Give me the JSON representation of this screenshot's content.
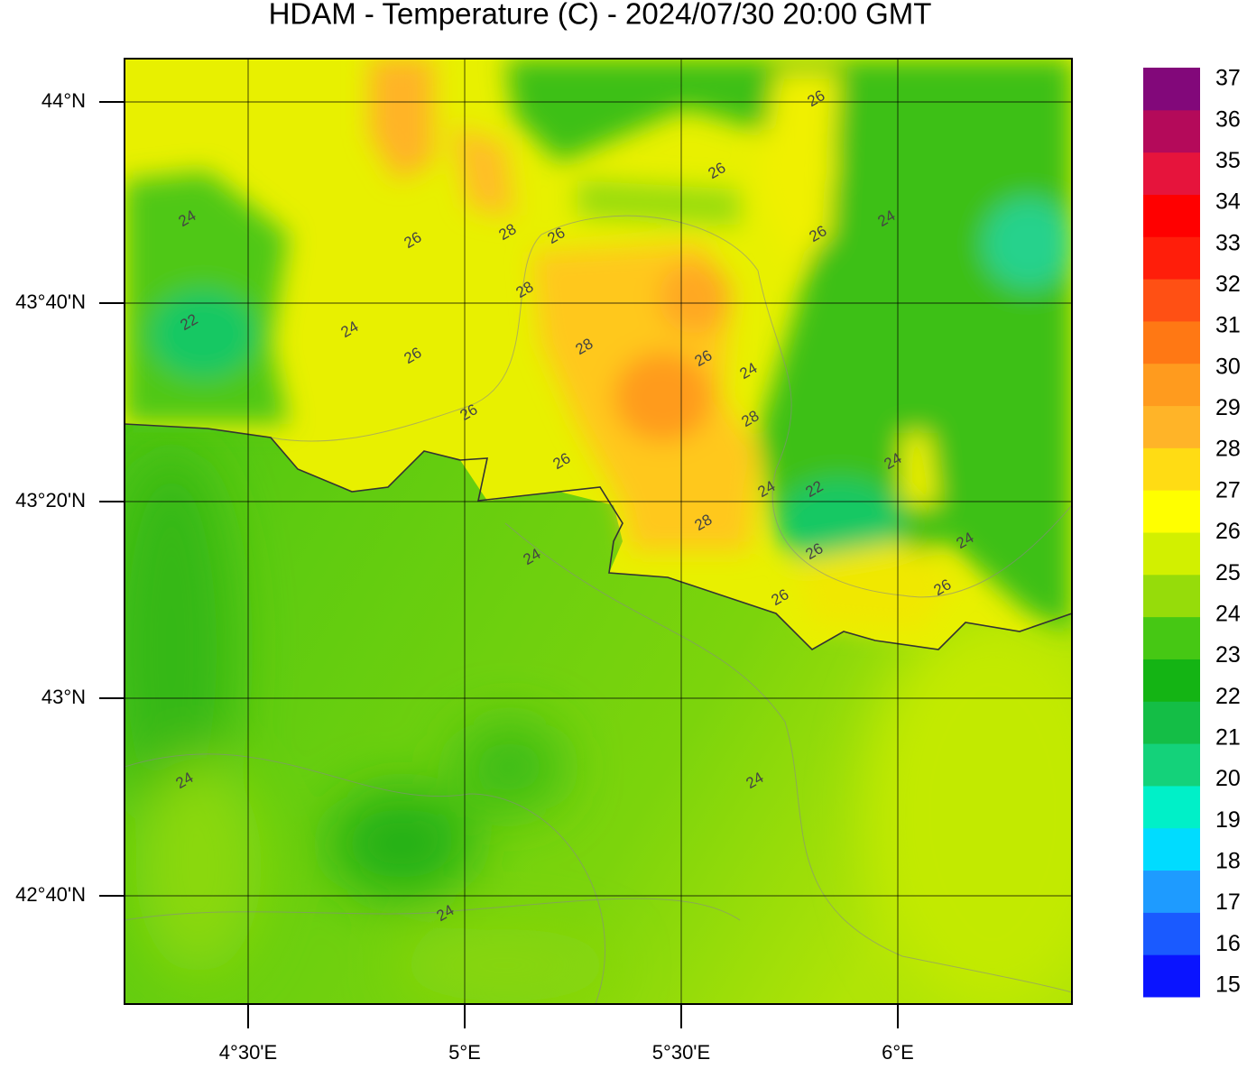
{
  "title": "HDAM - Temperature (C)  -  2024/07/30  20:00 GMT",
  "lat_labels": [
    "44°N",
    "43°40'N",
    "43°20'N",
    "43°N",
    "42°40'N"
  ],
  "lon_labels": [
    "4°30'E",
    "5°E",
    "5°30'E",
    "6°E"
  ],
  "colorbar": {
    "ticks": [
      15,
      16,
      17,
      18,
      19,
      20,
      21,
      22,
      23,
      24,
      25,
      26,
      27,
      28,
      29,
      30,
      31,
      32,
      33,
      34,
      35,
      36,
      37
    ],
    "colors": [
      "#0a14ff",
      "#1a5aff",
      "#1e9bff",
      "#00dcff",
      "#00f0c8",
      "#14d27a",
      "#14be46",
      "#14b414",
      "#46c814",
      "#96dc0a",
      "#d2f000",
      "#ffff00",
      "#ffdc14",
      "#ffb428",
      "#ff9b1e",
      "#ff7814",
      "#ff5014",
      "#ff1e0a",
      "#ff0000",
      "#e6143c",
      "#b40a5a",
      "#82087a"
    ]
  },
  "contour_labels": [
    26,
    26,
    24,
    26,
    28,
    26,
    26,
    24,
    22,
    28,
    24,
    26,
    28,
    26,
    24,
    26,
    28,
    26,
    24,
    24,
    22,
    28,
    24,
    24,
    26,
    26,
    26,
    24,
    24,
    24
  ]
}
